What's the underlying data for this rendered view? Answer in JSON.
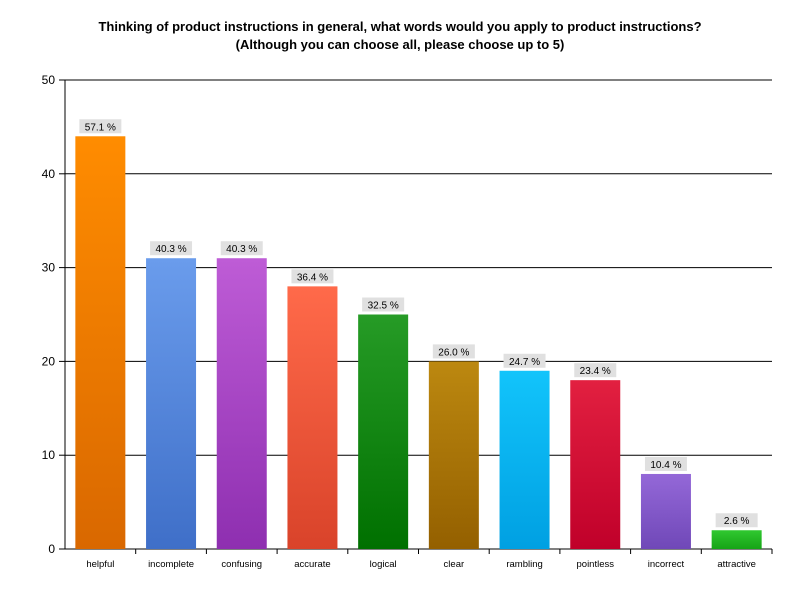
{
  "title": {
    "line1": "Thinking of product instructions in general, what words would you apply to product instructions?",
    "line2": "(Although you can choose all, please choose up to 5)"
  },
  "chart_data": {
    "type": "bar",
    "categories": [
      "helpful",
      "incomplete",
      "confusing",
      "accurate",
      "logical",
      "clear",
      "rambling",
      "pointless",
      "incorrect",
      "attractive"
    ],
    "values": [
      44,
      31,
      31,
      28,
      25,
      20,
      19,
      18,
      8,
      2
    ],
    "data_labels": [
      "57.1 %",
      "40.3 %",
      "40.3 %",
      "36.4 %",
      "32.5 %",
      "26.0 %",
      "24.7 %",
      "23.4 %",
      "10.4 %",
      "2.6 %"
    ],
    "colors": [
      [
        "#ff8c00",
        "#d96800"
      ],
      [
        "#6a9cec",
        "#3f6fc8"
      ],
      [
        "#be5cd6",
        "#8e2fb0"
      ],
      [
        "#ff6a4a",
        "#d9432a"
      ],
      [
        "#269b26",
        "#007000"
      ],
      [
        "#bc8810",
        "#946000"
      ],
      [
        "#12c4fb",
        "#00a0e2"
      ],
      [
        "#e22040",
        "#c0002a"
      ],
      [
        "#9468d8",
        "#7048b8"
      ],
      [
        "#30c830",
        "#16a416"
      ]
    ],
    "ylim": [
      0,
      50
    ],
    "yticks": [
      0,
      10,
      20,
      30,
      40,
      50
    ],
    "xlabel": "",
    "ylabel": "",
    "grid": true,
    "legend": false
  }
}
